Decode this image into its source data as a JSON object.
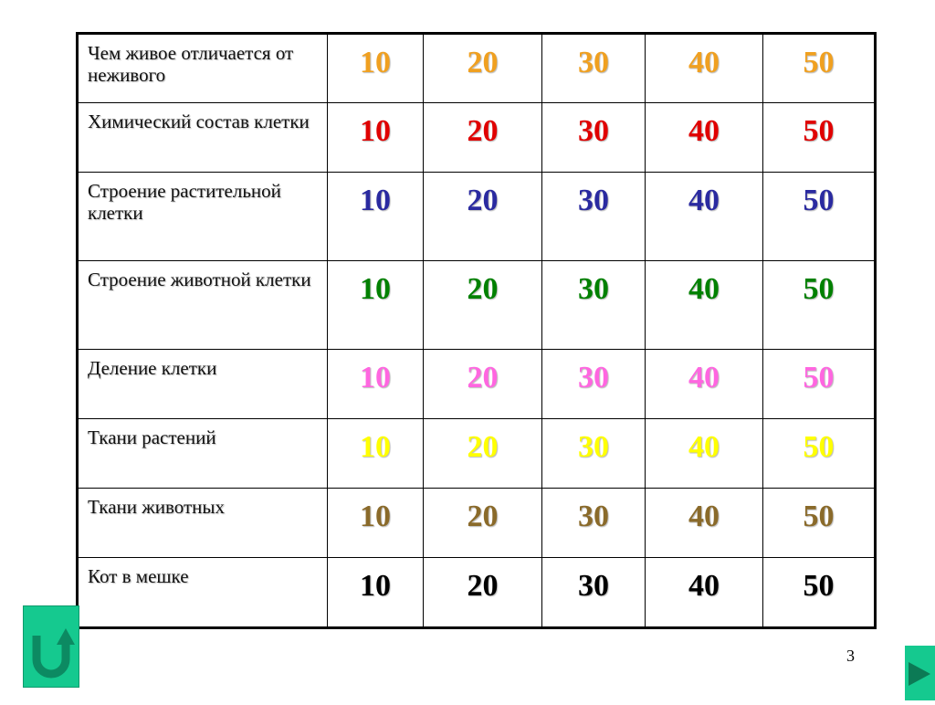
{
  "points": [
    "10",
    "20",
    "30",
    "40",
    "50"
  ],
  "rows": [
    {
      "topic": "Чем живое отличается от неживого",
      "color": "#f0a020"
    },
    {
      "topic": "Химический состав клетки",
      "color": "#e00000"
    },
    {
      "topic": "Строение растительной  клетки",
      "color": "#2a2aa0"
    },
    {
      "topic": "Строение животной клетки",
      "color": "#008000"
    },
    {
      "topic": "Деление клетки",
      "color": "#ff66e0"
    },
    {
      "topic": "Ткани растений",
      "color": "#ffff00"
    },
    {
      "topic": "Ткани животных",
      "color": "#8a6a2a"
    },
    {
      "topic": "Кот в мешке",
      "color": "#000000"
    }
  ],
  "row_heights": [],
  "footer": {
    "page_number": "3",
    "back_icon": "u-turn-arrow-icon",
    "next_icon": "play-triangle-icon"
  }
}
